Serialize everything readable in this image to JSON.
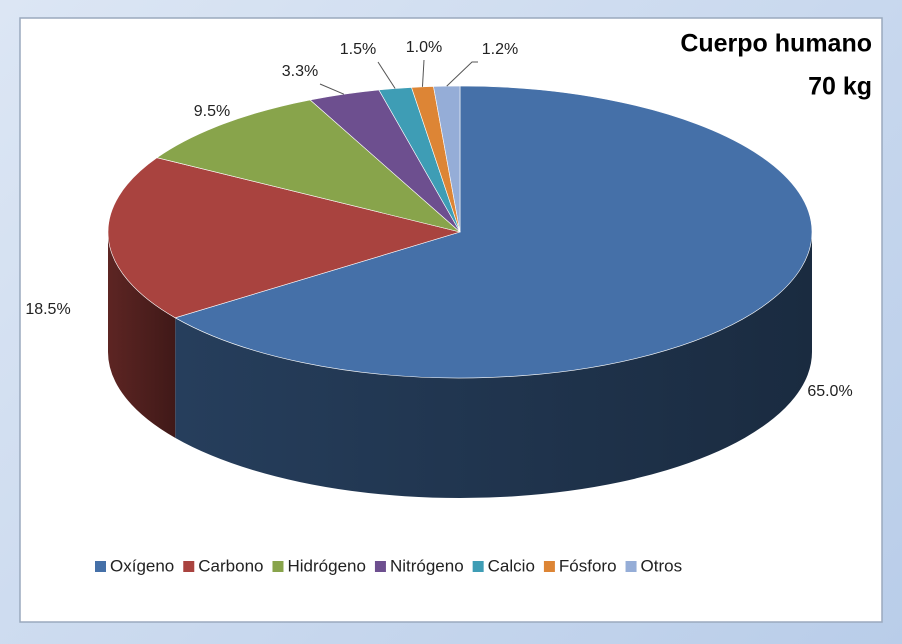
{
  "chart_data": {
    "type": "pie3d",
    "title": "Cuerpo humano",
    "subtitle": "70 kg",
    "categories": [
      "Oxígeno",
      "Carbono",
      "Hidrógeno",
      "Nitrógeno",
      "Calcio",
      "Fósforo",
      "Otros"
    ],
    "values": [
      65.0,
      18.5,
      9.5,
      3.3,
      1.5,
      1.0,
      1.2
    ],
    "value_labels": [
      "65.0%",
      "18.5%",
      "9.5%",
      "3.3%",
      "1.5%",
      "1.0%",
      "1.2%"
    ],
    "colors": [
      "#4570a8",
      "#a9433f",
      "#88a44b",
      "#6d4f8f",
      "#3e9db5",
      "#dd8535",
      "#95add7"
    ],
    "legend": "bottom"
  }
}
